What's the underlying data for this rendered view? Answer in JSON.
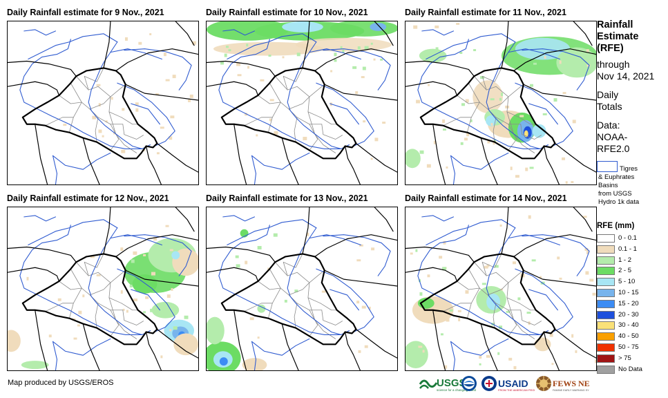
{
  "panels": [
    {
      "title": "Daily Rainfall estimate for 9 Nov., 2021"
    },
    {
      "title": "Daily Rainfall estimate for 10 Nov., 2021"
    },
    {
      "title": "Daily Rainfall estimate for 11 Nov., 2021"
    },
    {
      "title": "Daily Rainfall estimate for 12 Nov., 2021"
    },
    {
      "title": "Daily Rainfall estimate for 13 Nov., 2021"
    },
    {
      "title": "Daily Rainfall estimate for 14 Nov., 2021"
    }
  ],
  "sidebar": {
    "title_lines": [
      "Rainfall",
      "Estimate",
      "(RFE)"
    ],
    "through_lines": [
      "through",
      "Nov 14, 2021"
    ],
    "daily_lines": [
      "Daily",
      "Totals"
    ],
    "data_lines": [
      "Data:",
      "NOAA-",
      "RFE2.0"
    ],
    "basins_lines": [
      "Tigres",
      "& Euphrates",
      "Basins",
      "from USGS",
      "Hydro 1k data"
    ]
  },
  "legend": {
    "title": "RFE (mm)",
    "items": [
      {
        "label": "0 - 0.1",
        "color": "#ffffff"
      },
      {
        "label": "0.1 - 1",
        "color": "#f0dcbc"
      },
      {
        "label": "1 - 2",
        "color": "#b4ecac"
      },
      {
        "label": "2 - 5",
        "color": "#6cdc64"
      },
      {
        "label": "5 - 10",
        "color": "#a8e6f4"
      },
      {
        "label": "10 - 15",
        "color": "#78b4ec"
      },
      {
        "label": "15 - 20",
        "color": "#3c8cf4"
      },
      {
        "label": "20 - 30",
        "color": "#1e50dc"
      },
      {
        "label": "30 - 40",
        "color": "#fae178"
      },
      {
        "label": "40 - 50",
        "color": "#faa000"
      },
      {
        "label": "50 - 75",
        "color": "#f03200"
      },
      {
        "label": "> 75",
        "color": "#a01414"
      },
      {
        "label": "No Data",
        "color": "#a0a0a0"
      }
    ]
  },
  "colors": {
    "border": "#000000",
    "river": "#2f5bd0",
    "admin": "#8a8a8a"
  },
  "footer": {
    "credit": "Map produced by USGS/EROS",
    "logos": [
      "USGS",
      "USAID",
      "FEWS NET"
    ]
  }
}
